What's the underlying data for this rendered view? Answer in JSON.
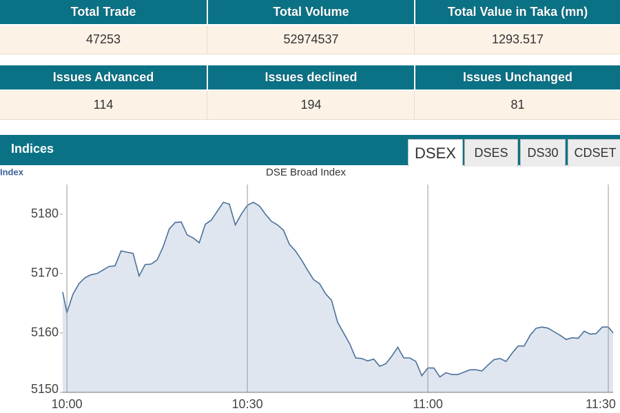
{
  "summary_table": {
    "headers": [
      "Total Trade",
      "Total Volume",
      "Total Value in Taka (mn)"
    ],
    "values": [
      "47253",
      "52974537",
      "1293.517"
    ]
  },
  "issues_table": {
    "headers": [
      "Issues Advanced",
      "Issues declined",
      "Issues Unchanged"
    ],
    "values": [
      "114",
      "194",
      "81"
    ]
  },
  "indices": {
    "title": "Indices",
    "tabs": [
      "DSEX",
      "DSES",
      "DS30",
      "CDSET"
    ],
    "active_tab": 0
  },
  "chart_data": {
    "type": "area",
    "title": "DSE Broad Index",
    "y_label": "Index",
    "x": [
      -0.7,
      0,
      1,
      2,
      3,
      4,
      5,
      6,
      7,
      8,
      9,
      10,
      11,
      12,
      13,
      14,
      15,
      16,
      17,
      18,
      19,
      20,
      21,
      22,
      23,
      24,
      25,
      26,
      27,
      28,
      29,
      30,
      31,
      32,
      33,
      34,
      35,
      36,
      37,
      38,
      39,
      40,
      41,
      42,
      43,
      44,
      45,
      46,
      47,
      48,
      49,
      50,
      51,
      52,
      53,
      54,
      55,
      56,
      57,
      58,
      59,
      60,
      61,
      62,
      63,
      64,
      65,
      66,
      67,
      68,
      69,
      70,
      71,
      72,
      73,
      74,
      75,
      76,
      77,
      78,
      79,
      80,
      81,
      82,
      83,
      84,
      85,
      86,
      87,
      88,
      89,
      90,
      90.8
    ],
    "series": [
      {
        "name": "DSEX",
        "color": "#4a6f9a",
        "values": [
          5166.9,
          5163.4,
          5166.5,
          5168.3,
          5169.3,
          5169.8,
          5170.0,
          5170.6,
          5171.2,
          5171.3,
          5173.8,
          5173.6,
          5173.4,
          5169.6,
          5171.5,
          5171.6,
          5172.3,
          5174.5,
          5177.5,
          5178.6,
          5178.7,
          5176.5,
          5176.0,
          5175.2,
          5178.3,
          5179.0,
          5180.5,
          5182.0,
          5181.7,
          5178.2,
          5180.0,
          5181.5,
          5182.0,
          5181.4,
          5180.0,
          5178.8,
          5178.2,
          5177.3,
          5174.9,
          5173.8,
          5172.3,
          5170.6,
          5169.0,
          5168.3,
          5166.6,
          5165.5,
          5161.8,
          5160.0,
          5158.2,
          5155.8,
          5155.7,
          5155.3,
          5155.6,
          5154.4,
          5154.8,
          5156.1,
          5157.6,
          5155.8,
          5155.8,
          5155.2,
          5152.8,
          5154.1,
          5154.1,
          5152.6,
          5153.3,
          5153.0,
          5153.0,
          5153.4,
          5153.8,
          5153.8,
          5153.6,
          5154.6,
          5155.5,
          5155.7,
          5155.2,
          5156.6,
          5157.8,
          5157.8,
          5159.6,
          5160.8,
          5161.0,
          5160.8,
          5160.2,
          5159.6,
          5158.9,
          5159.2,
          5159.1,
          5160.3,
          5159.8,
          5159.9,
          5161.0,
          5161.0,
          5160.0
        ]
      }
    ],
    "area_color": "#dfe6ef",
    "xlim": [
      -0.7,
      90.8
    ],
    "xticks": [
      {
        "value": 0,
        "label": "10:00"
      },
      {
        "value": 30,
        "label": "10:30"
      },
      {
        "value": 60,
        "label": "11:00"
      },
      {
        "value": 90,
        "label": "11:30"
      }
    ],
    "ylim": [
      5150,
      5185
    ],
    "yticks": [
      5150,
      5160,
      5170,
      5180
    ],
    "grid": "x"
  }
}
